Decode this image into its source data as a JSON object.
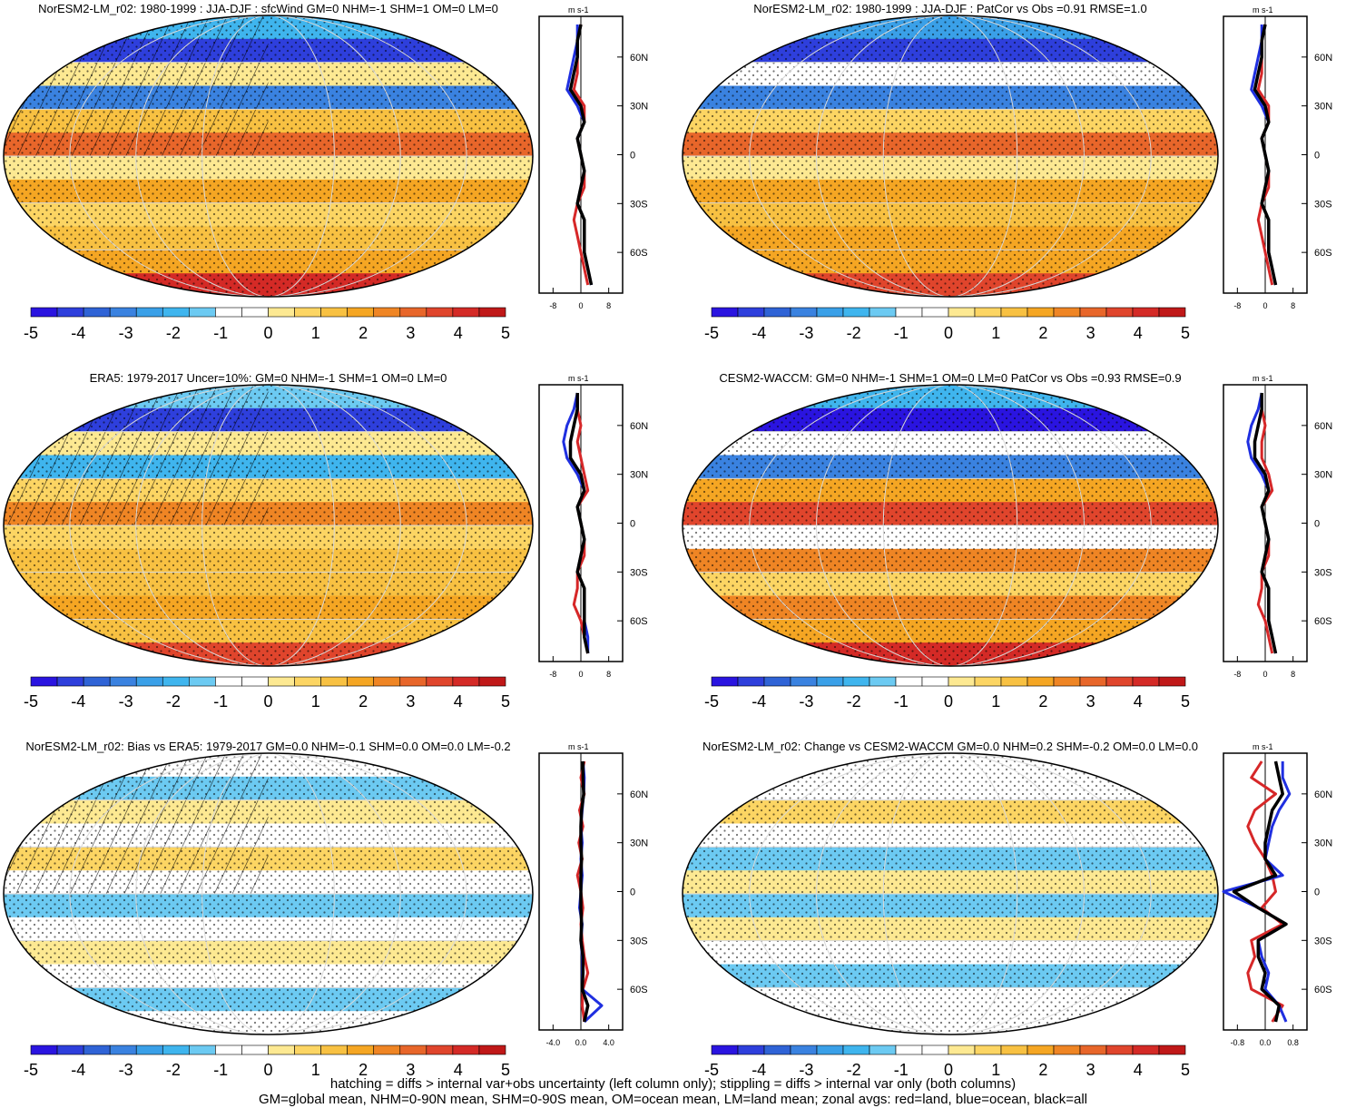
{
  "footer": {
    "line1": "hatching = diffs > internal var+obs uncertainty (left column only); stippling = diffs > internal var only (both columns)",
    "line2": "GM=global mean, NHM=0-90N mean, SHM=0-90S mean, OM=ocean mean, LM=land mean; zonal avgs: red=land, blue=ocean, black=all"
  },
  "colors": {
    "palette": [
      "#2a14e0",
      "#2e3fdc",
      "#2f63d6",
      "#3a82e0",
      "#3aa0e8",
      "#3fb5ee",
      "#6ccaf2",
      "#ffffff",
      "#ffffff",
      "#fde992",
      "#fcd563",
      "#f8c142",
      "#f5a623",
      "#ef8524",
      "#e8662a",
      "#e0452c",
      "#d42a26",
      "#c01818"
    ],
    "land": "#d62728",
    "ocean": "#1f2fe0",
    "all": "#000000"
  },
  "chart_data": [
    {
      "type": "heatmap",
      "title": "NorESM2-LM_r02: 1980-1999 : JJA-DJF : sfcWind GM=0 NHM=-1 SHM=1 OM=0 LM=0",
      "colorbar_ticks": [
        "-5",
        "-4",
        "-3",
        "-2",
        "-1",
        "0",
        "1",
        "2",
        "3",
        "4",
        "5"
      ],
      "hatching": true,
      "zonal": {
        "unit": "m s-1",
        "xlim": [
          -12,
          12
        ],
        "xticks": [
          "-8",
          "0",
          "8"
        ],
        "yticks": [
          "60N",
          "30N",
          "0",
          "30S",
          "60S"
        ],
        "lat": [
          80,
          70,
          60,
          50,
          40,
          30,
          20,
          10,
          0,
          -10,
          -20,
          -30,
          -40,
          -50,
          -60,
          -70,
          -80
        ],
        "series": [
          {
            "name": "land",
            "values": [
              0,
              -1,
              -1,
              -1,
              -2,
              1,
              1,
              -1,
              0,
              1,
              1,
              -1,
              -2,
              -1,
              0,
              1,
              2
            ]
          },
          {
            "name": "ocean",
            "values": [
              -1,
              -1,
              -2,
              -3,
              -4,
              -1,
              1,
              -1,
              0,
              1,
              0,
              -1,
              1,
              1,
              1,
              2,
              3
            ]
          },
          {
            "name": "all",
            "values": [
              0,
              -1,
              -1,
              -2,
              -3,
              0,
              1,
              -1,
              0,
              1,
              0,
              -1,
              1,
              1,
              1,
              2,
              3
            ]
          }
        ]
      }
    },
    {
      "type": "heatmap",
      "title": "NorESM2-LM_r02: 1980-1999 : JJA-DJF : PatCor vs Obs =0.91 RMSE=1.0",
      "colorbar_ticks": [
        "-5",
        "-4",
        "-3",
        "-2",
        "-1",
        "0",
        "1",
        "2",
        "3",
        "4",
        "5"
      ],
      "hatching": false,
      "zonal": {
        "unit": "m s-1",
        "xlim": [
          -12,
          12
        ],
        "xticks": [
          "-8",
          "0",
          "8"
        ],
        "yticks": [
          "60N",
          "30N",
          "0",
          "30S",
          "60S"
        ],
        "lat": [
          80,
          70,
          60,
          50,
          40,
          30,
          20,
          10,
          0,
          -10,
          -20,
          -30,
          -40,
          -50,
          -60,
          -70,
          -80
        ],
        "series": [
          {
            "name": "land",
            "values": [
              0,
              -1,
              -1,
              -1,
              -2,
              1,
              1,
              -1,
              0,
              1,
              1,
              -1,
              -2,
              -1,
              0,
              1,
              2
            ]
          },
          {
            "name": "ocean",
            "values": [
              -1,
              -1,
              -2,
              -3,
              -4,
              -1,
              1,
              -1,
              0,
              1,
              0,
              -1,
              1,
              1,
              1,
              2,
              3
            ]
          },
          {
            "name": "all",
            "values": [
              0,
              -1,
              -1,
              -2,
              -3,
              0,
              1,
              -1,
              0,
              1,
              0,
              -1,
              1,
              1,
              1,
              2,
              3
            ]
          }
        ]
      }
    },
    {
      "type": "heatmap",
      "title": "ERA5: 1979-2017 Uncer=10%: GM=0 NHM=-1 SHM=1 OM=0 LM=0",
      "colorbar_ticks": [
        "-5",
        "-4",
        "-3",
        "-2",
        "-1",
        "0",
        "1",
        "2",
        "3",
        "4",
        "5"
      ],
      "hatching": true,
      "zonal": {
        "unit": "m s-1",
        "xlim": [
          -12,
          12
        ],
        "xticks": [
          "-8",
          "0",
          "8"
        ],
        "yticks": [
          "60N",
          "30N",
          "0",
          "30S",
          "60S"
        ],
        "lat": [
          80,
          70,
          60,
          50,
          40,
          30,
          20,
          10,
          0,
          -10,
          -20,
          -30,
          -40,
          -50,
          -60,
          -70,
          -80
        ],
        "series": [
          {
            "name": "land",
            "values": [
              -1,
              -1,
              0,
              -1,
              0,
              1,
              2,
              -1,
              0,
              1,
              1,
              -1,
              -1,
              -2,
              0,
              1,
              2
            ]
          },
          {
            "name": "ocean",
            "values": [
              -1,
              -2,
              -4,
              -5,
              -4,
              -1,
              1,
              -1,
              0,
              1,
              0,
              -1,
              1,
              1,
              1,
              2,
              2
            ]
          },
          {
            "name": "all",
            "values": [
              -1,
              -1,
              -2,
              -3,
              -3,
              0,
              1,
              -1,
              0,
              1,
              0,
              -1,
              1,
              1,
              1,
              1,
              2
            ]
          }
        ]
      }
    },
    {
      "type": "heatmap",
      "title": "CESM2-WACCM: GM=0 NHM=-1 SHM=1 OM=0 LM=0 PatCor vs Obs =0.93 RMSE=0.9",
      "colorbar_ticks": [
        "-5",
        "-4",
        "-3",
        "-2",
        "-1",
        "0",
        "1",
        "2",
        "3",
        "4",
        "5"
      ],
      "hatching": false,
      "zonal": {
        "unit": "m s-1",
        "xlim": [
          -12,
          12
        ],
        "xticks": [
          "-8",
          "0",
          "8"
        ],
        "yticks": [
          "60N",
          "30N",
          "0",
          "30S",
          "60S"
        ],
        "lat": [
          80,
          70,
          60,
          50,
          40,
          30,
          20,
          10,
          0,
          -10,
          -20,
          -30,
          -40,
          -50,
          -60,
          -70,
          -80
        ],
        "series": [
          {
            "name": "land",
            "values": [
              -1,
              -1,
              0,
              -1,
              -1,
              1,
              2,
              -1,
              0,
              1,
              1,
              -1,
              -1,
              -2,
              0,
              1,
              2
            ]
          },
          {
            "name": "ocean",
            "values": [
              -1,
              -2,
              -4,
              -5,
              -4,
              -1,
              1,
              -1,
              0,
              1,
              0,
              -1,
              1,
              1,
              1,
              2,
              3
            ]
          },
          {
            "name": "all",
            "values": [
              -1,
              -1,
              -2,
              -3,
              -3,
              0,
              1,
              -1,
              0,
              1,
              0,
              -1,
              1,
              1,
              1,
              2,
              3
            ]
          }
        ]
      }
    },
    {
      "type": "heatmap",
      "title": "NorESM2-LM_r02: Bias vs ERA5: 1979-2017 GM=0.0 NHM=-0.1 SHM=0.0 OM=0.0 LM=-0.2",
      "colorbar_ticks": [
        "-5",
        "-4",
        "-3",
        "-2",
        "-1",
        "0",
        "1",
        "2",
        "3",
        "4",
        "5"
      ],
      "hatching": true,
      "zonal": {
        "unit": "m s-1",
        "xlim": [
          -6,
          6
        ],
        "xticks": [
          "-4.0",
          "0.0",
          "4.0"
        ],
        "yticks": [
          "60N",
          "30N",
          "0",
          "30S",
          "60S"
        ],
        "lat": [
          80,
          70,
          60,
          50,
          40,
          30,
          20,
          10,
          0,
          -10,
          -20,
          -30,
          -40,
          -50,
          -60,
          -70,
          -80
        ],
        "series": [
          {
            "name": "land",
            "values": [
              0.5,
              0,
              0.5,
              -0.2,
              0.3,
              -0.3,
              0.2,
              -0.5,
              0,
              0.3,
              0,
              0.2,
              0.5,
              1,
              0.3,
              0.2,
              0.5
            ]
          },
          {
            "name": "ocean",
            "values": [
              0.3,
              0.5,
              0.4,
              0.2,
              0,
              0.2,
              0,
              0.2,
              0,
              -0.2,
              0.2,
              0,
              0.2,
              0.2,
              0.2,
              3,
              0.5
            ]
          },
          {
            "name": "all",
            "values": [
              0.3,
              0.3,
              0.4,
              0.1,
              0,
              0,
              0.1,
              0,
              0,
              0,
              0.1,
              0,
              0.3,
              0.3,
              0.2,
              1,
              0.5
            ]
          }
        ]
      }
    },
    {
      "type": "heatmap",
      "title": "NorESM2-LM_r02: Change vs CESM2-WACCM GM=0.0 NHM=0.2 SHM=-0.2 OM=0.0 LM=0.0",
      "colorbar_ticks": [
        "-5",
        "-4",
        "-3",
        "-2",
        "-1",
        "0",
        "1",
        "2",
        "3",
        "4",
        "5"
      ],
      "hatching": false,
      "zonal": {
        "unit": "m s-1",
        "xlim": [
          -1.2,
          1.2
        ],
        "xticks": [
          "-0.8",
          "0.0",
          "0.8"
        ],
        "yticks": [
          "60N",
          "30N",
          "0",
          "30S",
          "60S"
        ],
        "lat": [
          80,
          70,
          60,
          50,
          40,
          30,
          20,
          10,
          0,
          -10,
          -20,
          -30,
          -40,
          -50,
          -60,
          -70,
          -80
        ],
        "series": [
          {
            "name": "land",
            "values": [
              -0.1,
              -0.4,
              0.3,
              -0.3,
              -0.5,
              -0.3,
              0,
              0.2,
              0.3,
              -0.1,
              0.5,
              -0.4,
              -0.3,
              -0.5,
              -0.4,
              0.5,
              0.2
            ]
          },
          {
            "name": "ocean",
            "values": [
              0.5,
              0.5,
              0.7,
              0.4,
              0.2,
              0.1,
              0,
              0.5,
              -1.2,
              -0.2,
              0.6,
              -0.2,
              -0.1,
              0.1,
              0,
              0.4,
              0.6
            ]
          },
          {
            "name": "all",
            "values": [
              0.3,
              0.4,
              0.5,
              0.2,
              0.1,
              0,
              0,
              0.3,
              -0.9,
              -0.2,
              0.6,
              -0.2,
              -0.2,
              0,
              -0.1,
              0.4,
              0.3
            ]
          }
        ]
      }
    }
  ]
}
